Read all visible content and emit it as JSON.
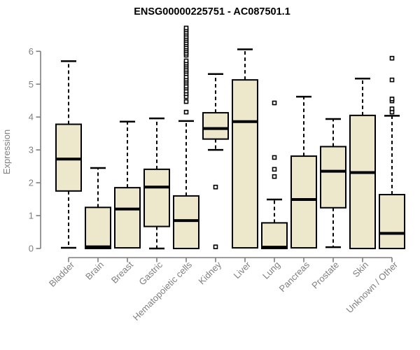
{
  "page": {
    "background": "#ffffff"
  },
  "chart_data": {
    "type": "boxplot",
    "title": "ENSG00000225751 - AC087501.1",
    "ylabel": "Expression",
    "xlabel": "",
    "ylim": [
      0,
      6
    ],
    "yticks": [
      0,
      1,
      2,
      3,
      4,
      5,
      6
    ],
    "grid": false,
    "legend": null,
    "colors": {
      "box_fill": "#EDE7CB",
      "box_stroke": "#000000",
      "axis_color": "#7f7f7f",
      "outlier_fill": "#ffffff"
    },
    "outlier_marker": "open-square",
    "categories": [
      "Bladder",
      "Brain",
      "Breast",
      "Gastric",
      "Hematopoietic cells",
      "Kidney",
      "Liver",
      "Lung",
      "Pancreas",
      "Prostate",
      "Skin",
      "Unknown / Other"
    ],
    "boxes": [
      {
        "category": "Bladder",
        "whisker_low": 0.02,
        "q1": 1.75,
        "median": 2.72,
        "q3": 3.78,
        "whisker_high": 5.7,
        "outliers": []
      },
      {
        "category": "Brain",
        "whisker_low": 0.0,
        "q1": 0.0,
        "median": 0.05,
        "q3": 1.25,
        "whisker_high": 2.45,
        "outliers": []
      },
      {
        "category": "Breast",
        "whisker_low": 0.02,
        "q1": 0.02,
        "median": 1.2,
        "q3": 1.85,
        "whisker_high": 3.86,
        "outliers": []
      },
      {
        "category": "Gastric",
        "whisker_low": 0.0,
        "q1": 0.67,
        "median": 1.87,
        "q3": 2.41,
        "whisker_high": 3.96,
        "outliers": []
      },
      {
        "category": "Hematopoietic cells",
        "whisker_low": 0.0,
        "q1": 0.0,
        "median": 0.85,
        "q3": 1.6,
        "whisker_high": 3.88,
        "outliers": [
          4.15,
          4.47,
          4.62,
          4.71,
          4.79,
          4.88,
          4.94,
          5.03,
          5.09,
          5.15,
          5.22,
          5.32,
          5.39,
          5.45,
          5.52,
          5.58,
          5.64,
          5.71,
          5.88,
          5.94,
          6.01,
          6.07,
          6.13,
          6.2,
          6.26,
          6.33,
          6.39,
          6.45,
          6.52,
          6.58,
          6.65,
          6.71
        ]
      },
      {
        "category": "Kidney",
        "whisker_low": 3.0,
        "q1": 3.33,
        "median": 3.65,
        "q3": 4.13,
        "whisker_high": 5.31,
        "outliers": [
          1.87,
          0.05
        ]
      },
      {
        "category": "Liver",
        "whisker_low": 0.02,
        "q1": 0.02,
        "median": 3.86,
        "q3": 5.13,
        "whisker_high": 6.06,
        "outliers": []
      },
      {
        "category": "Lung",
        "whisker_low": 0.0,
        "q1": 0.0,
        "median": 0.04,
        "q3": 0.78,
        "whisker_high": 1.49,
        "outliers": [
          2.19,
          2.41,
          2.77,
          4.43
        ]
      },
      {
        "category": "Pancreas",
        "whisker_low": 0.02,
        "q1": 0.02,
        "median": 1.49,
        "q3": 2.81,
        "whisker_high": 4.62,
        "outliers": []
      },
      {
        "category": "Prostate",
        "whisker_low": 0.04,
        "q1": 1.24,
        "median": 2.35,
        "q3": 3.1,
        "whisker_high": 3.94,
        "outliers": []
      },
      {
        "category": "Skin",
        "whisker_low": 0.0,
        "q1": 0.0,
        "median": 2.31,
        "q3": 4.05,
        "whisker_high": 5.17,
        "outliers": []
      },
      {
        "category": "Unknown / Other",
        "whisker_low": 0.0,
        "q1": 0.0,
        "median": 0.46,
        "q3": 1.64,
        "whisker_high": 4.04,
        "outliers": [
          4.15,
          4.25,
          4.49,
          4.55,
          5.13,
          5.79
        ]
      }
    ]
  }
}
